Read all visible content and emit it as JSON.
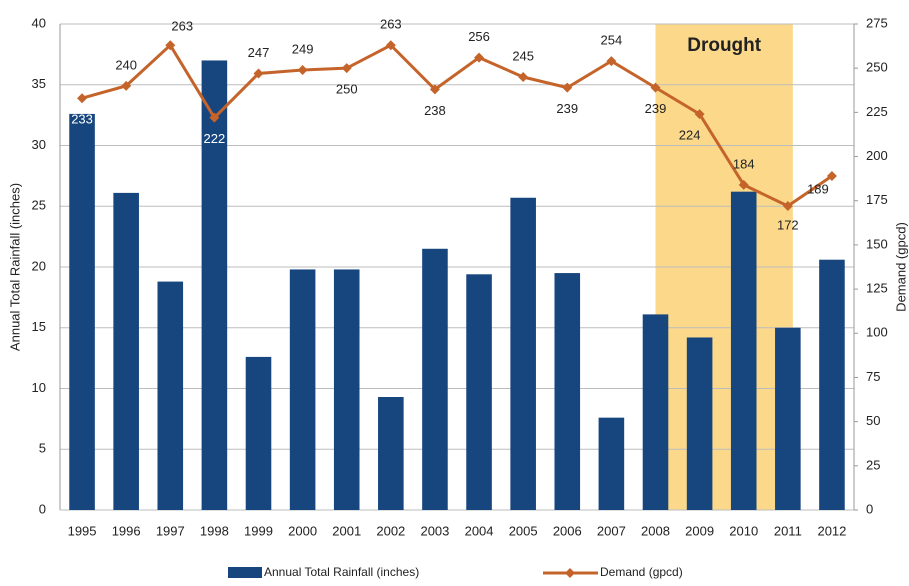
{
  "chart_data": {
    "type": "bar_line",
    "categories": [
      "1995",
      "1996",
      "1997",
      "1998",
      "1999",
      "2000",
      "2001",
      "2002",
      "2003",
      "2004",
      "2005",
      "2006",
      "2007",
      "2008",
      "2009",
      "2010",
      "2011",
      "2012"
    ],
    "series": [
      {
        "name": "Annual Total Rainfall (inches)",
        "type": "bar",
        "color": "#17467f",
        "axis": "y",
        "values": [
          32.6,
          26.1,
          18.8,
          37.0,
          12.6,
          19.8,
          19.8,
          9.3,
          21.5,
          19.4,
          25.7,
          19.5,
          7.6,
          16.1,
          14.2,
          26.2,
          15.0,
          20.6
        ]
      },
      {
        "name": "Demand (gpcd)",
        "type": "line",
        "color": "#c5642a",
        "axis": "y2",
        "values": [
          233,
          240,
          263,
          222,
          247,
          249,
          250,
          263,
          238,
          256,
          245,
          239,
          254,
          239,
          224,
          184,
          172,
          189
        ]
      }
    ],
    "ylabel": "Annual Total Rainfall (inches)",
    "y2label": "Demand (gpcd)",
    "annotation": "Drought",
    "ylim": [
      0,
      40
    ],
    "yticks": [
      0,
      5,
      10,
      15,
      20,
      25,
      30,
      35,
      40
    ],
    "y2lim": [
      0,
      275
    ],
    "y2ticks": [
      0,
      25,
      50,
      75,
      100,
      125,
      150,
      175,
      200,
      225,
      250,
      275
    ],
    "grid": true
  }
}
